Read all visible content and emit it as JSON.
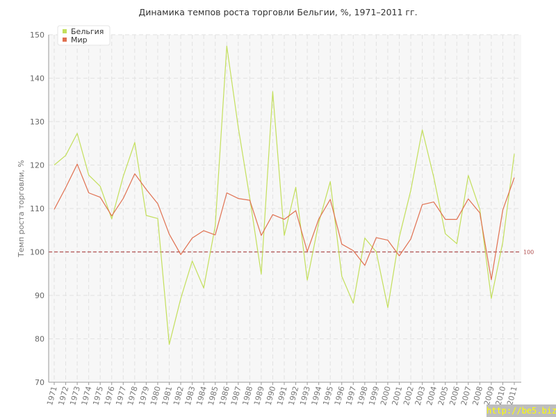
{
  "chart_data": {
    "type": "line",
    "title": "Динамика темпов роста торговли Бельгии, %, 1971–2011 гг.",
    "xlabel": "",
    "ylabel": "Темп роста торговли, %",
    "ylim": [
      70,
      150
    ],
    "yticks": [
      70,
      80,
      90,
      100,
      110,
      120,
      130,
      140,
      150
    ],
    "grid": true,
    "legend": "top-left",
    "categories": [
      "1971",
      "1972",
      "1973",
      "1974",
      "1975",
      "1976",
      "1977",
      "1978",
      "1979",
      "1980",
      "1981",
      "1982",
      "1983",
      "1984",
      "1985",
      "1986",
      "1987",
      "1988",
      "1989",
      "1990",
      "1991",
      "1992",
      "1993",
      "1994",
      "1995",
      "1996",
      "1997",
      "1998",
      "1999",
      "2000",
      "2001",
      "2002",
      "2003",
      "2004",
      "2005",
      "2006",
      "2007",
      "2008",
      "2009",
      "2010",
      "2011"
    ],
    "series": [
      {
        "name": "Бельгия",
        "color": "#c3df5b",
        "values": [
          120.0,
          122.2,
          127.3,
          117.7,
          115.1,
          107.6,
          117.4,
          125.2,
          108.4,
          107.7,
          78.7,
          89.3,
          97.9,
          91.7,
          106.0,
          147.4,
          128.7,
          112.4,
          94.9,
          136.9,
          103.8,
          114.9,
          93.5,
          106.8,
          116.2,
          94.4,
          88.2,
          103.2,
          100.0,
          87.2,
          103.4,
          114.2,
          128.1,
          117.2,
          104.2,
          101.9,
          117.6,
          109.8,
          89.3,
          102.3,
          122.6
        ]
      },
      {
        "name": "Мир",
        "color": "#e07050",
        "values": [
          109.8,
          114.8,
          120.2,
          113.6,
          112.6,
          108.3,
          112.3,
          118.0,
          114.4,
          111.1,
          104.1,
          99.4,
          103.2,
          104.9,
          103.9,
          113.6,
          112.3,
          111.9,
          103.8,
          108.6,
          107.5,
          109.5,
          100.1,
          107.6,
          112.1,
          101.8,
          100.3,
          96.9,
          103.3,
          102.7,
          99.1,
          103.0,
          110.9,
          111.5,
          107.5,
          107.5,
          112.2,
          109.0,
          93.6,
          109.7,
          117.1
        ]
      }
    ],
    "reference_line": {
      "value": 100,
      "label": "100",
      "color": "#b05050",
      "style": "dashed"
    }
  },
  "watermark": "http://be5.biz/"
}
